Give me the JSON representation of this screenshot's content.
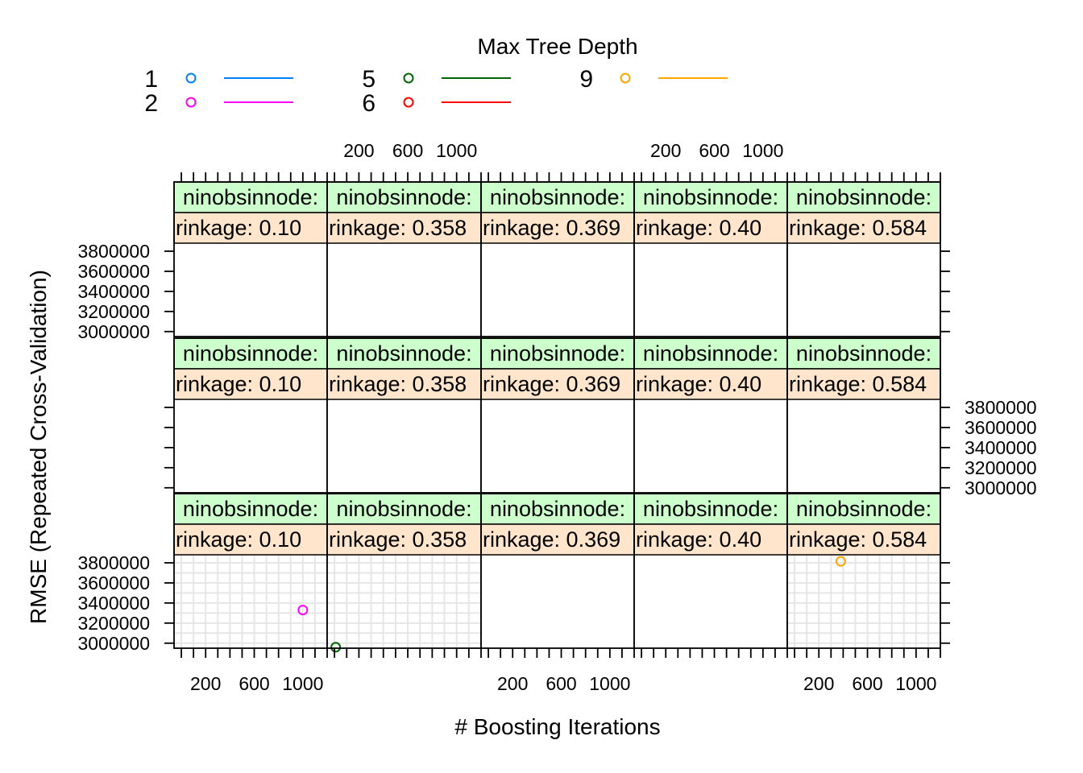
{
  "chart_data": {
    "type": "scatter",
    "xlabel": "# Boosting Iterations",
    "ylabel": "RMSE (Repeated Cross-Validation)",
    "legend": {
      "title": "Max Tree Depth",
      "placement": "top",
      "entries": [
        {
          "label": "1",
          "color": "#0080ff"
        },
        {
          "label": "2",
          "color": "#ff00ff"
        },
        {
          "label": "5",
          "color": "#006400"
        },
        {
          "label": "6",
          "color": "#ff0000"
        },
        {
          "label": "9",
          "color": "#ffa500"
        }
      ]
    },
    "x_ticks": [
      "200",
      "600",
      "1000"
    ],
    "y_ticks": [
      "3000000",
      "3200000",
      "3400000",
      "3600000",
      "3800000"
    ],
    "xlim": [
      -60,
      1200
    ],
    "ylim": [
      2950000,
      3880000
    ],
    "strip_top": "ninobsinnode:",
    "strip_bottom": [
      "rinkage: 0.10",
      "rinkage: 0.358",
      "rinkage: 0.369",
      "rinkage: 0.40",
      "rinkage: 0.584"
    ],
    "panels": [
      {
        "row": 0,
        "col": 0,
        "grid": true,
        "points": [
          {
            "series": "2",
            "x": 1000,
            "y": 3330000
          }
        ]
      },
      {
        "row": 0,
        "col": 1,
        "grid": true,
        "points": [
          {
            "series": "5",
            "x": 10,
            "y": 2960000
          }
        ]
      },
      {
        "row": 0,
        "col": 2,
        "grid": false,
        "points": []
      },
      {
        "row": 0,
        "col": 3,
        "grid": false,
        "points": []
      },
      {
        "row": 0,
        "col": 4,
        "grid": true,
        "points": [
          {
            "series": "9",
            "x": 380,
            "y": 3815000
          }
        ]
      },
      {
        "row": 1,
        "col": 0,
        "grid": false,
        "points": []
      },
      {
        "row": 1,
        "col": 1,
        "grid": false,
        "points": []
      },
      {
        "row": 1,
        "col": 2,
        "grid": false,
        "points": []
      },
      {
        "row": 1,
        "col": 3,
        "grid": false,
        "points": []
      },
      {
        "row": 1,
        "col": 4,
        "grid": false,
        "points": []
      },
      {
        "row": 2,
        "col": 0,
        "grid": false,
        "points": []
      },
      {
        "row": 2,
        "col": 1,
        "grid": false,
        "points": []
      },
      {
        "row": 2,
        "col": 2,
        "grid": false,
        "points": []
      },
      {
        "row": 2,
        "col": 3,
        "grid": false,
        "points": []
      },
      {
        "row": 2,
        "col": 4,
        "grid": false,
        "points": []
      }
    ]
  }
}
